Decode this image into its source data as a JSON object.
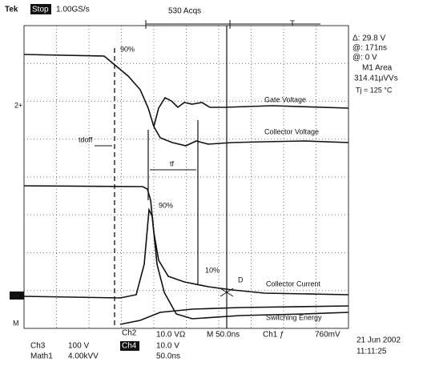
{
  "header": {
    "brand": "Tek",
    "state": "Stop",
    "rate": "1.00GS/s",
    "acqs": "530 Acqs",
    "trigger": "T"
  },
  "readout": [
    "Δ: 29.8 V",
    "@: 171ns",
    "@: 0 V",
    "M1 Area",
    "314.41μVVs",
    "Tj = 125 °C"
  ],
  "labels": {
    "gate_pct": "90%",
    "gate": "Gate Voltage",
    "collector_v": "Collector Voltage",
    "tdoff": "tdoff",
    "tf": "tf",
    "current_pct": "90%",
    "low_pct": "10%",
    "point": "D",
    "collector_i": "Collector Current",
    "energy": "Switching Energy",
    "ch2_marker": "2+",
    "math_marker": "M"
  },
  "footer": {
    "ch2": "Ch2",
    "ch2_scale": "10.0 VΩ",
    "time": "M 50.0ns",
    "ch1": "Ch1 ƒ",
    "level": "760mV",
    "ch3": "Ch3",
    "ch3_scale": "100 V",
    "ch4": "Ch4",
    "ch4_scale": "10.0 V",
    "math": "Math1",
    "math_scale": "4.00kVV",
    "math_time": "50.0ns",
    "date": "21 Jun 2002",
    "clock": "11:11:25"
  }
}
